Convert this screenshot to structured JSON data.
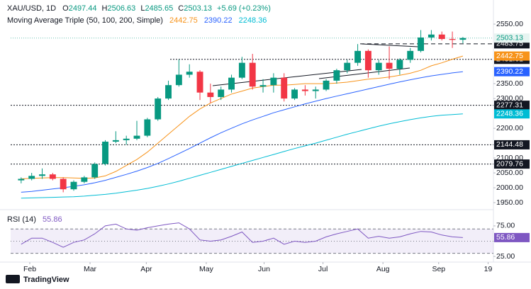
{
  "chart_data": {
    "type": "candlestick",
    "symbol": "XAU/USD, 1D",
    "ohlc_labels": [
      "O",
      "H",
      "L",
      "C"
    ],
    "change": "+5.69 (+0.23%)",
    "ma_title": "Moving Average Triple (50, 100, 200, Simple)",
    "up_color": "#089981",
    "down_color": "#f23645",
    "open": [
      2025,
      2030,
      2040,
      2045,
      2030,
      1995,
      2020,
      2035,
      2080,
      2155,
      2160,
      2165,
      2175,
      2230,
      2300,
      2345,
      2380,
      2390,
      2320,
      2305,
      2330,
      2370,
      2420,
      2340,
      2345,
      2370,
      2300,
      2330,
      2325,
      2330,
      2360,
      2395,
      2420,
      2460,
      2395,
      2420,
      2400,
      2430,
      2460,
      2505,
      2515,
      2500,
      2497.44
    ],
    "high": [
      2035,
      2050,
      2065,
      2050,
      2035,
      2025,
      2040,
      2085,
      2160,
      2190,
      2175,
      2225,
      2235,
      2305,
      2360,
      2431,
      2415,
      2395,
      2350,
      2340,
      2380,
      2440,
      2450,
      2365,
      2385,
      2385,
      2335,
      2345,
      2340,
      2365,
      2400,
      2430,
      2483,
      2465,
      2430,
      2475,
      2435,
      2470,
      2530,
      2530,
      2525,
      2525,
      2506.63
    ],
    "low": [
      2015,
      2025,
      2030,
      2025,
      1985,
      1990,
      2015,
      2030,
      2075,
      2150,
      2145,
      2160,
      2170,
      2225,
      2295,
      2340,
      2370,
      2295,
      2285,
      2295,
      2320,
      2365,
      2330,
      2320,
      2320,
      2290,
      2295,
      2310,
      2300,
      2325,
      2350,
      2385,
      2410,
      2370,
      2380,
      2365,
      2380,
      2420,
      2455,
      2495,
      2495,
      2470,
      2485.65
    ],
    "close": [
      2030,
      2040,
      2045,
      2030,
      1995,
      2020,
      2035,
      2080,
      2155,
      2160,
      2165,
      2175,
      2230,
      2300,
      2345,
      2380,
      2390,
      2320,
      2305,
      2330,
      2370,
      2420,
      2340,
      2345,
      2370,
      2300,
      2330,
      2325,
      2330,
      2360,
      2395,
      2420,
      2460,
      2395,
      2420,
      2400,
      2430,
      2460,
      2505,
      2515,
      2500,
      2497,
      2503.13
    ],
    "moving_averages": [
      {
        "name": "50",
        "color": "#f7931a",
        "values": [
          2030,
          2032,
          2033,
          2034,
          2034,
          2033,
          2032,
          2033,
          2040,
          2055,
          2075,
          2095,
          2120,
          2150,
          2180,
          2210,
          2240,
          2265,
          2285,
          2300,
          2315,
          2325,
          2335,
          2340,
          2345,
          2345,
          2347,
          2350,
          2350,
          2350,
          2352,
          2355,
          2360,
          2365,
          2368,
          2372,
          2378,
          2385,
          2395,
          2410,
          2420,
          2432,
          2442.75
        ]
      },
      {
        "name": "100",
        "color": "#2962ff",
        "values": [
          1985,
          1988,
          1992,
          1996,
          2000,
          2005,
          2010,
          2017,
          2025,
          2035,
          2045,
          2056,
          2068,
          2082,
          2098,
          2115,
          2132,
          2150,
          2168,
          2185,
          2200,
          2215,
          2228,
          2240,
          2252,
          2262,
          2272,
          2282,
          2291,
          2300,
          2308,
          2316,
          2324,
          2332,
          2340,
          2348,
          2356,
          2363,
          2370,
          2376,
          2381,
          2386,
          2390.22
        ]
      },
      {
        "name": "200",
        "color": "#00bcd4",
        "values": [
          1965,
          1966,
          1967,
          1968,
          1969,
          1970,
          1972,
          1975,
          1978,
          1982,
          1987,
          1992,
          1998,
          2005,
          2013,
          2022,
          2032,
          2042,
          2052,
          2062,
          2072,
          2082,
          2092,
          2102,
          2112,
          2122,
          2132,
          2141,
          2150,
          2160,
          2170,
          2180,
          2189,
          2198,
          2207,
          2215,
          2222,
          2229,
          2235,
          2240,
          2244,
          2246,
          2248.36
        ]
      }
    ],
    "levels": [
      {
        "value": 2483.75,
        "style": "dashed"
      },
      {
        "value": 2431.61,
        "style": "dotted"
      },
      {
        "value": 2277.31,
        "style": "dotted"
      },
      {
        "value": 2144.48,
        "style": "dotted"
      },
      {
        "value": 2079.76,
        "style": "dotted"
      }
    ],
    "ylim": [
      1936,
      2612
    ],
    "yticks": [
      {
        "value": 2550,
        "label": "2550.00"
      },
      {
        "value": 2350,
        "label": "2350.00"
      },
      {
        "value": 2300,
        "label": "2300.00"
      },
      {
        "value": 2200,
        "label": "2200.00"
      },
      {
        "value": 2100,
        "label": "2100.00"
      },
      {
        "value": 2050,
        "label": "2050.00"
      },
      {
        "value": 2000,
        "label": "2000.00"
      },
      {
        "value": 1950,
        "label": "1950.00"
      }
    ],
    "xlim": [
      -1,
      44.5
    ],
    "xticks": [
      {
        "value": 0.82,
        "label": "Feb"
      },
      {
        "value": 6.55,
        "label": "Mar"
      },
      {
        "value": 11.9,
        "label": "Apr"
      },
      {
        "value": 17.6,
        "label": "May"
      },
      {
        "value": 23.1,
        "label": "Jun"
      },
      {
        "value": 28.7,
        "label": "Jul"
      },
      {
        "value": 34.4,
        "label": "Aug"
      },
      {
        "value": 39.7,
        "label": "Sep"
      },
      {
        "value": 44.4,
        "label": "19"
      }
    ],
    "rsi": {
      "title": "RSI (14)",
      "color": "#7e57c2",
      "values": [
        45,
        55,
        55,
        48,
        40,
        48,
        52,
        62,
        75,
        78,
        70,
        68,
        72,
        75,
        78,
        80,
        70,
        52,
        50,
        52,
        58,
        65,
        48,
        50,
        55,
        45,
        50,
        48,
        50,
        57,
        62,
        66,
        70,
        55,
        58,
        55,
        57,
        62,
        66,
        65,
        60,
        57,
        55.86
      ],
      "ylim": [
        18,
        97
      ],
      "yticks": [
        {
          "value": 75,
          "label": "75.00"
        },
        {
          "value": 25,
          "label": "25.00"
        }
      ],
      "band": [
        30,
        70
      ],
      "midline": 50
    },
    "brand": "TradingView"
  }
}
